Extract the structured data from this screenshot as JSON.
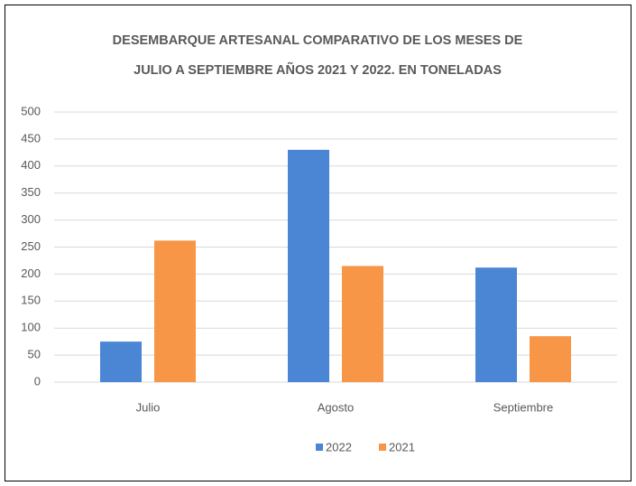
{
  "chart_data": {
    "type": "bar",
    "title": [
      "DESEMBARQUE ARTESANAL COMPARATIVO DE LOS MESES DE",
      "JULIO A SEPTIEMBRE AÑOS 2021 Y 2022. EN TONELADAS"
    ],
    "categories": [
      "Julio",
      "Agosto",
      "Septiembre"
    ],
    "series": [
      {
        "name": "2022",
        "color": "#4a86d4",
        "values": [
          75,
          430,
          212
        ]
      },
      {
        "name": "2021",
        "color": "#f79646",
        "values": [
          262,
          215,
          85
        ]
      }
    ],
    "ylim": [
      0,
      500
    ],
    "yticks": [
      0,
      50,
      100,
      150,
      200,
      250,
      300,
      350,
      400,
      450,
      500
    ],
    "grid": true,
    "legend": "bottom"
  }
}
